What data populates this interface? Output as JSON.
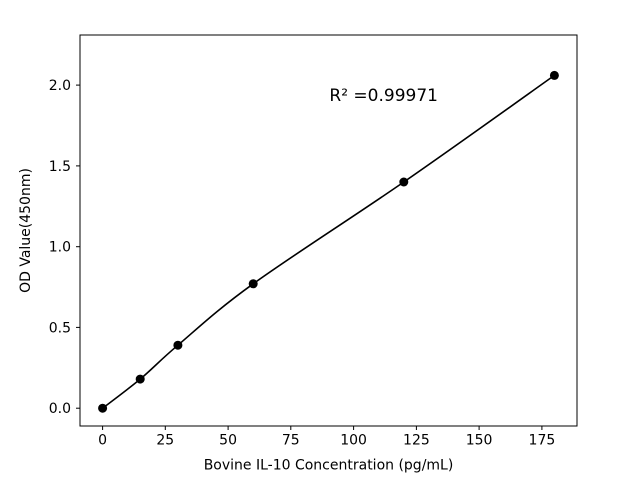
{
  "figure": {
    "background": "#ffffff"
  },
  "chart_data": {
    "type": "scatter",
    "title": "",
    "xlabel": "Bovine IL-10 Concentration (pg/mL)",
    "ylabel": "OD Value(450nm)",
    "x": [
      0,
      15,
      30,
      60,
      120,
      180
    ],
    "y": [
      0.0,
      0.18,
      0.39,
      0.77,
      1.4,
      2.06
    ],
    "fit_line": true,
    "annotation": {
      "text": "R² =0.99971",
      "x": 112,
      "y": 1.9
    },
    "xlim": [
      -9,
      189
    ],
    "ylim": [
      -0.11,
      2.31
    ],
    "xticks": [
      0,
      25,
      50,
      75,
      100,
      125,
      150,
      175
    ],
    "xtick_labels": [
      "0",
      "25",
      "50",
      "75",
      "100",
      "125",
      "150",
      "175"
    ],
    "yticks": [
      0.0,
      0.5,
      1.0,
      1.5,
      2.0
    ],
    "ytick_labels": [
      "0.0",
      "0.5",
      "1.0",
      "1.5",
      "2.0"
    ],
    "grid": false,
    "legend": "none",
    "marker_color": "#000000",
    "line_color": "#000000",
    "frame_color": "#000000"
  }
}
